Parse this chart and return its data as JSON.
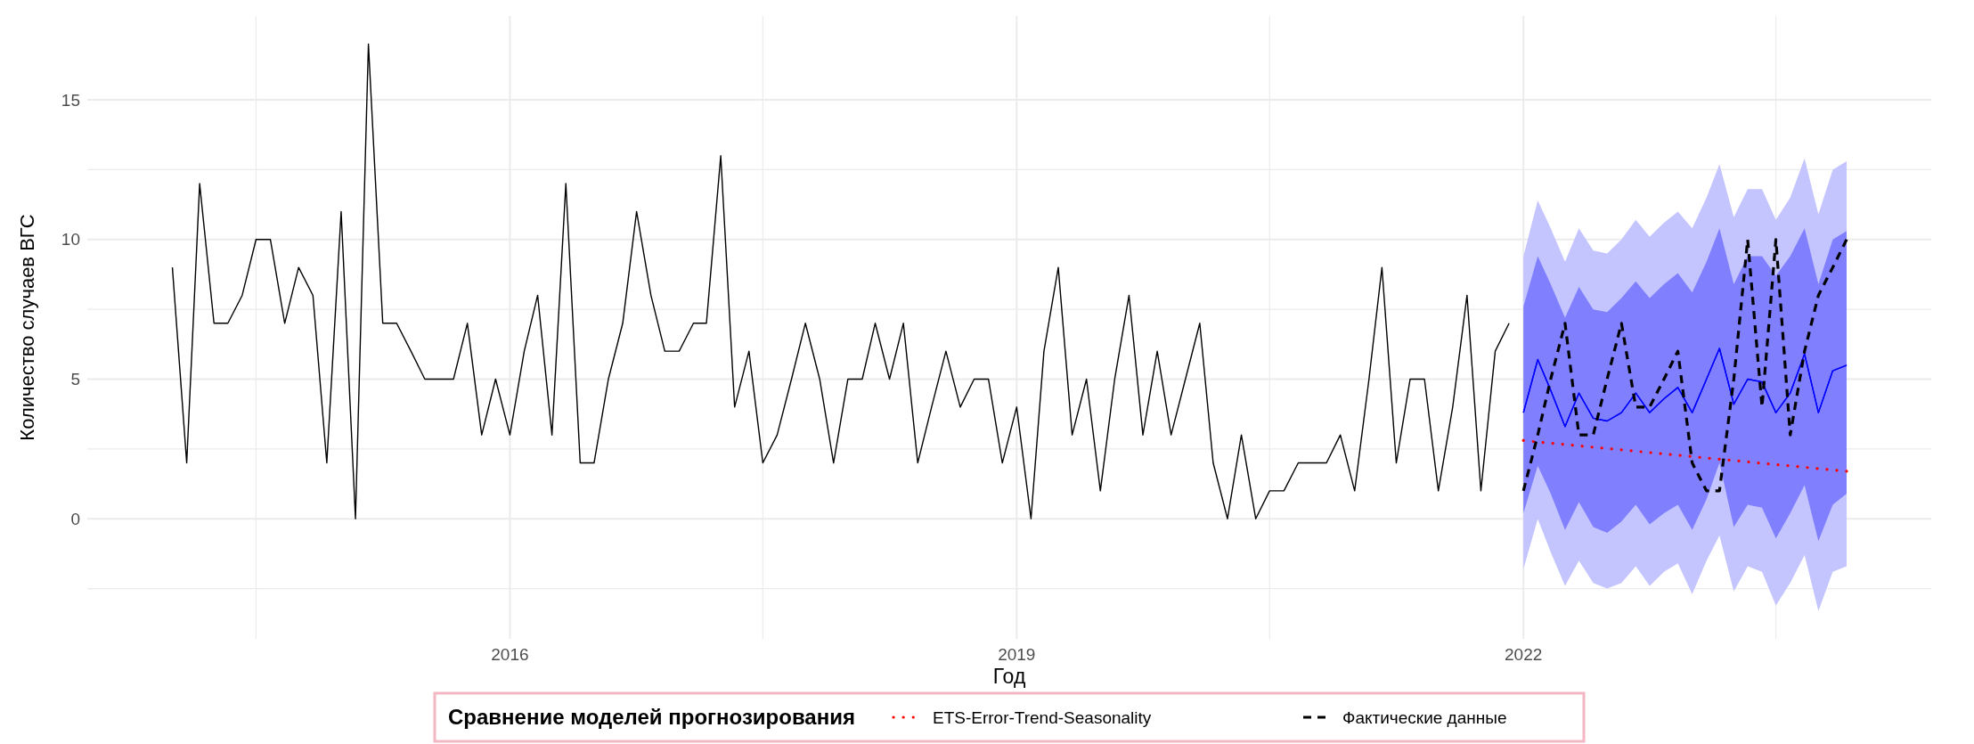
{
  "chart_data": {
    "type": "line",
    "xlabel": "Год",
    "ylabel": "Количество случаев ВГС",
    "legend_title": "Сравнение моделей прогнозирования",
    "legend": "bottom",
    "grid": true,
    "xlim": [
      "2013-07",
      "2024-06"
    ],
    "xticks": [
      {
        "value": "2014-07",
        "label": null
      },
      {
        "value": "2016-01",
        "label": "2016"
      },
      {
        "value": "2017-07",
        "label": null
      },
      {
        "value": "2019-01",
        "label": "2019"
      },
      {
        "value": "2020-07",
        "label": null
      },
      {
        "value": "2022-01",
        "label": "2022"
      },
      {
        "value": "2023-07",
        "label": null
      }
    ],
    "ylim": [
      -4.3,
      18
    ],
    "yticks": [
      {
        "value": -2.5,
        "label": null
      },
      0,
      {
        "value": 2.5,
        "label": null
      },
      5,
      {
        "value": 7.5,
        "label": null
      },
      10,
      {
        "value": 12.5,
        "label": null
      },
      15
    ],
    "x": [
      "2014-01",
      "2014-02",
      "2014-03",
      "2014-04",
      "2014-05",
      "2014-06",
      "2014-07",
      "2014-08",
      "2014-09",
      "2014-10",
      "2014-11",
      "2014-12",
      "2015-01",
      "2015-02",
      "2015-03",
      "2015-04",
      "2015-05",
      "2015-06",
      "2015-07",
      "2015-08",
      "2015-09",
      "2015-10",
      "2015-11",
      "2015-12",
      "2016-01",
      "2016-02",
      "2016-03",
      "2016-04",
      "2016-05",
      "2016-06",
      "2016-07",
      "2016-08",
      "2016-09",
      "2016-10",
      "2016-11",
      "2016-12",
      "2017-01",
      "2017-02",
      "2017-03",
      "2017-04",
      "2017-05",
      "2017-06",
      "2017-07",
      "2017-08",
      "2017-09",
      "2017-10",
      "2017-11",
      "2017-12",
      "2018-01",
      "2018-02",
      "2018-03",
      "2018-04",
      "2018-05",
      "2018-06",
      "2018-07",
      "2018-08",
      "2018-09",
      "2018-10",
      "2018-11",
      "2018-12",
      "2019-01",
      "2019-02",
      "2019-03",
      "2019-04",
      "2019-05",
      "2019-06",
      "2019-07",
      "2019-08",
      "2019-09",
      "2019-10",
      "2019-11",
      "2019-12",
      "2020-01",
      "2020-02",
      "2020-03",
      "2020-04",
      "2020-05",
      "2020-06",
      "2020-07",
      "2020-08",
      "2020-09",
      "2020-10",
      "2020-11",
      "2020-12",
      "2021-01",
      "2021-02",
      "2021-03",
      "2021-04",
      "2021-05",
      "2021-06",
      "2021-07",
      "2021-08",
      "2021-09",
      "2021-10",
      "2021-11",
      "2021-12"
    ],
    "series": [
      {
        "color": "#000000",
        "values": [
          9,
          2,
          12,
          7,
          7,
          8,
          10,
          10,
          7,
          9,
          8,
          2,
          11,
          0,
          17,
          7,
          7,
          6,
          5,
          5,
          5,
          7,
          3,
          5,
          3,
          6,
          8,
          3,
          12,
          2,
          2,
          5,
          7,
          11,
          8,
          6,
          6,
          7,
          7,
          13,
          4,
          6,
          2,
          3,
          5,
          7,
          5,
          2,
          5,
          5,
          7,
          5,
          7,
          2,
          4,
          6,
          4,
          5,
          5,
          2,
          4,
          0,
          6,
          9,
          3,
          5,
          1,
          5,
          8,
          3,
          6,
          3,
          5,
          7,
          2,
          0,
          3,
          0,
          1,
          1,
          2,
          2,
          2,
          3,
          1,
          5,
          9,
          2,
          5,
          5,
          1,
          4,
          8,
          1,
          6,
          7
        ]
      },
      {
        "color": "#0000ff",
        "x": [
          "2022-01",
          "2022-02",
          "2022-03",
          "2022-04",
          "2022-05",
          "2022-06",
          "2022-07",
          "2022-08",
          "2022-09",
          "2022-10",
          "2022-11",
          "2022-12",
          "2023-01",
          "2023-02",
          "2023-03",
          "2023-04",
          "2023-05",
          "2023-06",
          "2023-07",
          "2023-08",
          "2023-09",
          "2023-10",
          "2023-11",
          "2023-12"
        ],
        "values": [
          3.8,
          5.7,
          4.6,
          3.3,
          4.5,
          3.6,
          3.5,
          3.8,
          4.5,
          3.8,
          4.3,
          4.7,
          3.8,
          5,
          6.1,
          4.1,
          5,
          4.9,
          3.8,
          4.5,
          5.9,
          3.8,
          5.3,
          5.5
        ],
        "lower": [
          -1.8,
          0,
          -1.2,
          -2.4,
          -1.5,
          -2.3,
          -2.5,
          -2.3,
          -1.7,
          -2.4,
          -1.9,
          -1.6,
          -2.7,
          -1.5,
          -0.6,
          -2.6,
          -1.7,
          -1.9,
          -3.1,
          -2.3,
          -1.3,
          -3.3,
          -1.9,
          -1.7
        ],
        "upper": [
          9.4,
          11.4,
          10.4,
          9.2,
          10.4,
          9.6,
          9.5,
          10,
          10.7,
          10.1,
          10.6,
          11,
          10.4,
          11.5,
          12.7,
          10.8,
          11.8,
          11.8,
          10.7,
          11.5,
          12.9,
          10.9,
          12.5,
          12.8
        ]
      },
      {
        "color": "#0000ff",
        "x": [
          "2022-01",
          "2022-02",
          "2022-03",
          "2022-04",
          "2022-05",
          "2022-06",
          "2022-07",
          "2022-08",
          "2022-09",
          "2022-10",
          "2022-11",
          "2022-12",
          "2023-01",
          "2023-02",
          "2023-03",
          "2023-04",
          "2023-05",
          "2023-06",
          "2023-07",
          "2023-08",
          "2023-09",
          "2023-10",
          "2023-11",
          "2023-12"
        ],
        "values": [
          3.8,
          5.7,
          4.6,
          3.3,
          4.5,
          3.6,
          3.5,
          3.8,
          4.5,
          3.8,
          4.3,
          4.7,
          3.8,
          5,
          6.1,
          4.1,
          5,
          4.9,
          3.8,
          4.5,
          5.9,
          3.8,
          5.3,
          5.5
        ],
        "lower": [
          0.2,
          1.9,
          0.9,
          -0.4,
          0.6,
          -0.3,
          -0.5,
          -0.1,
          0.5,
          -0.2,
          0.2,
          0.5,
          -0.4,
          0.7,
          2,
          -0.3,
          0.5,
          0.4,
          -0.7,
          0.2,
          1.2,
          -0.8,
          0.5,
          0.9
        ],
        "upper": [
          7.6,
          9.4,
          8.4,
          7.2,
          8.3,
          7.5,
          7.4,
          7.9,
          8.5,
          7.9,
          8.4,
          8.8,
          8.1,
          9.2,
          10.4,
          8.4,
          9.4,
          9.4,
          8.7,
          9.4,
          10.4,
          8.4,
          10,
          10.3
        ]
      },
      {
        "name": "ETS-Error-Trend-Seasonality",
        "color": "#ff0000",
        "line_style": "dotted",
        "x": [
          "2022-01",
          "2023-12"
        ],
        "values": [
          2.8,
          1.7
        ]
      },
      {
        "name": "Фактические данные",
        "color": "#000000",
        "line_style": "dashed",
        "x": [
          "2022-01",
          "2022-02",
          "2022-03",
          "2022-04",
          "2022-05",
          "2022-06",
          "2022-07",
          "2022-08",
          "2022-09",
          "2022-10",
          "2022-11",
          "2022-12",
          "2023-01",
          "2023-02",
          "2023-03",
          "2023-04",
          "2023-05",
          "2023-06",
          "2023-07",
          "2023-08",
          "2023-09",
          "2023-10",
          "2023-11",
          "2023-12"
        ],
        "values": [
          1,
          3,
          5,
          7,
          3,
          3,
          5,
          7,
          4,
          4,
          5,
          6,
          2,
          1,
          1,
          5,
          10,
          4,
          10,
          3,
          6,
          8,
          9,
          10
        ]
      }
    ]
  }
}
